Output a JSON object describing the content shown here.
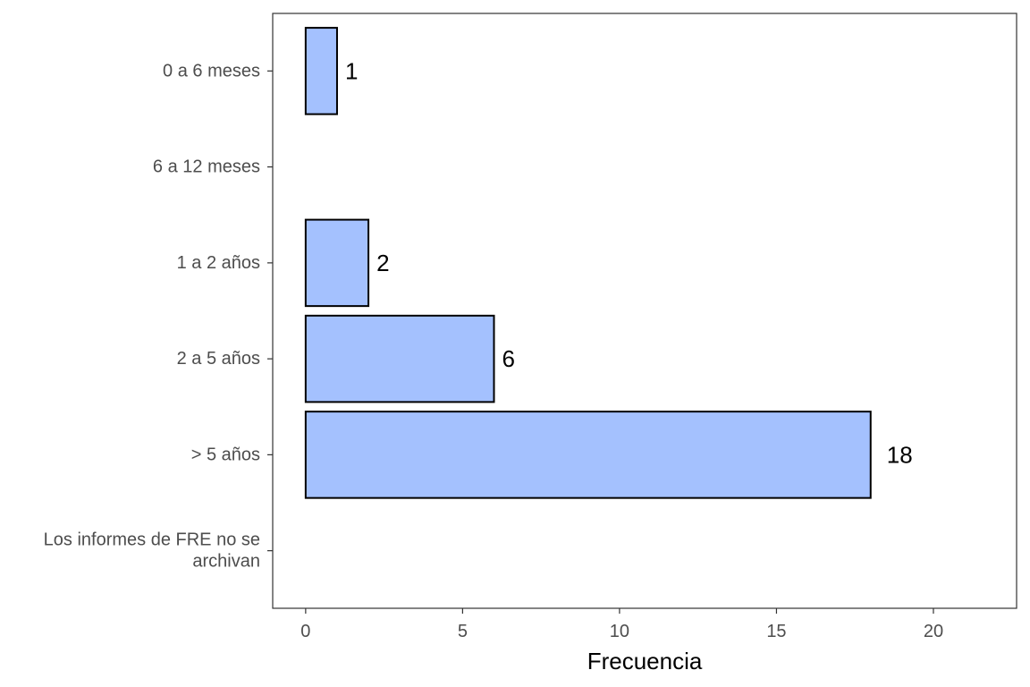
{
  "chart_data": {
    "type": "bar",
    "orientation": "horizontal",
    "categories": [
      "0 a 6 meses",
      "6 a 12 meses",
      "1 a 2 años",
      "2 a 5 años",
      "> 5 años",
      [
        "Los informes de FRE no se",
        "archivan"
      ]
    ],
    "values": [
      1,
      null,
      2,
      6,
      18,
      null
    ],
    "data_labels": [
      "1",
      "",
      "2",
      "6",
      "18",
      ""
    ],
    "xlabel": "Frecuencia",
    "ylabel": "",
    "title": "",
    "xlim": [
      -1.05,
      22.65
    ],
    "xticks": [
      0,
      5,
      10,
      15,
      20
    ],
    "grid": false,
    "legend": "none",
    "bar_fill": "#a4c1fe",
    "bar_stroke": "#000000"
  }
}
